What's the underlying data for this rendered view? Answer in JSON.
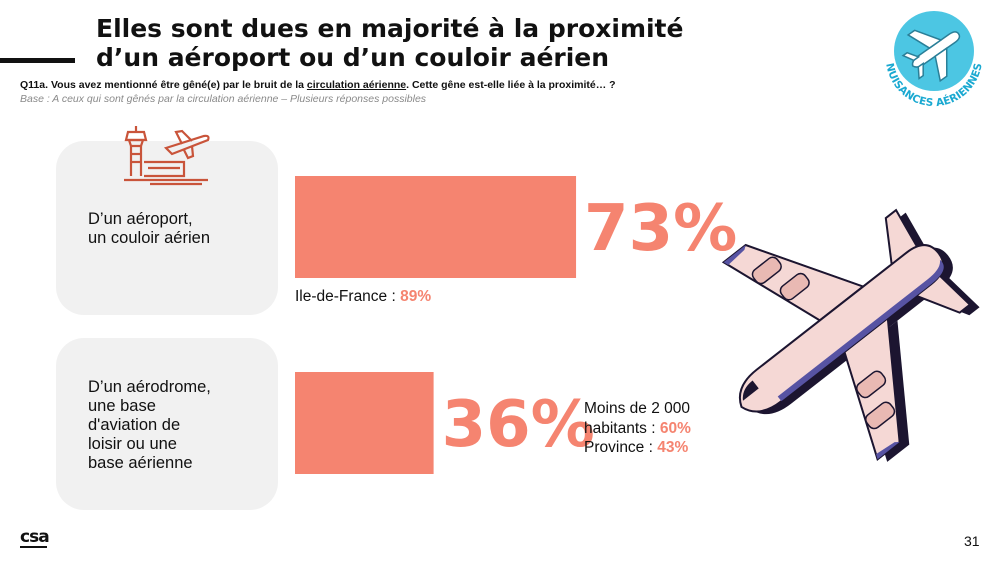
{
  "header": {
    "title": "Elles sont dues en majorité à la proximité d’un aéroport ou d’un couloir aérien",
    "question_prefix": "Q11a. Vous avez mentionné être gêné(e) par le bruit de la ",
    "question_underlined": "circulation aérienne",
    "question_suffix": ". Cette gêne est-elle liée à la proximité… ?",
    "base": "Base : A ceux qui sont gênés par la circulation aérienne – Plusieurs réponses possibles"
  },
  "badge": {
    "text": "NUISANCES AÉRIENNES",
    "icon": "airplane-icon"
  },
  "chart_data": {
    "type": "bar",
    "orientation": "horizontal",
    "categories": [
      "D’un aéroport,\nun couloir aérien",
      "D’un aérodrome,\nune base\nd'aviation de\nloisir ou une\nbase aérienne"
    ],
    "values": [
      73,
      36
    ],
    "value_labels": [
      "73%",
      "36%"
    ],
    "unit": "%",
    "xlim": [
      0,
      100
    ],
    "bar_color": "#f58470",
    "notes": [
      {
        "label": "Ile-de-France : ",
        "value": "89%"
      },
      {
        "lines": [
          {
            "label": "Moins de 2 000",
            "value": ""
          },
          {
            "label": "habitants : ",
            "value": "60%"
          },
          {
            "label": "Province : ",
            "value": "43%"
          }
        ]
      }
    ]
  },
  "colors": {
    "accent": "#f58470",
    "card_bg": "#f1f1f1",
    "badge": "#4cc6e3",
    "plane_purple": "#5753a3",
    "plane_pink": "#f5d8d5"
  },
  "footer": {
    "logo": "csa",
    "page": "31"
  }
}
